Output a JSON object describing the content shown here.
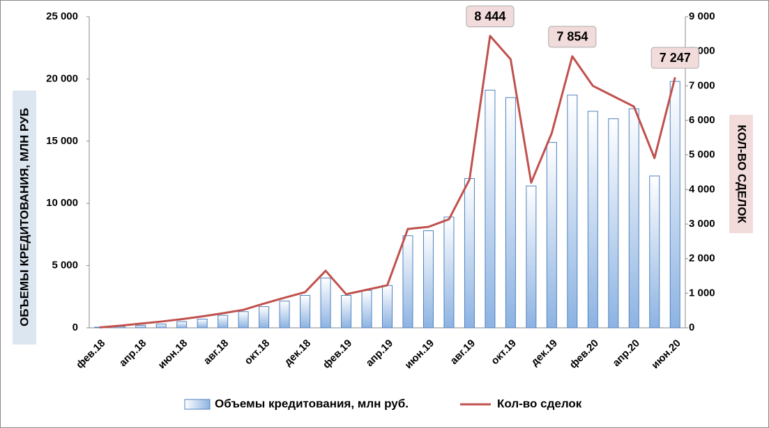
{
  "chart_data": {
    "type": "bar-line",
    "y_label": "ОБЪЕМЫ КРЕДИТОВАНИЯ, МЛН РУБ",
    "y2_label": "КОЛ-ВО СДЕЛОК",
    "categories": [
      "фев.18",
      null,
      "апр.18",
      null,
      "июн.18",
      null,
      "авг.18",
      null,
      "окт.18",
      null,
      "дек.18",
      null,
      "фев.19",
      null,
      "апр.19",
      null,
      "июн.19",
      null,
      "авг.19",
      null,
      "окт.19",
      null,
      "дек.19",
      null,
      "фев.20",
      null,
      "апр.20",
      null,
      "июн.20"
    ],
    "series": [
      {
        "name": "Объемы кредитования, млн руб.",
        "type": "bar",
        "color": "#4f81bd",
        "values": [
          50,
          100,
          200,
          300,
          500,
          700,
          1000,
          1300,
          1700,
          2150,
          2600,
          4000,
          2600,
          3000,
          3400,
          7400,
          7800,
          8900,
          12000,
          19100,
          18500,
          11400,
          14900,
          18700,
          17400,
          16800,
          17600,
          12200,
          19800
        ]
      },
      {
        "name": "Кол-во сделок",
        "type": "line",
        "axis": "y2",
        "color": "#c0504d",
        "values": [
          10,
          60,
          120,
          180,
          250,
          330,
          420,
          520,
          700,
          870,
          1030,
          1650,
          970,
          1100,
          1230,
          2860,
          2920,
          3140,
          4290,
          8444,
          7770,
          4200,
          5630,
          7854,
          7000,
          6700,
          6400,
          4910,
          7247
        ],
        "value_labels": [
          null,
          null,
          null,
          null,
          null,
          null,
          null,
          null,
          null,
          null,
          null,
          null,
          null,
          null,
          null,
          null,
          null,
          null,
          null,
          "8 444",
          null,
          null,
          null,
          "7 854",
          null,
          null,
          null,
          null,
          "7 247"
        ]
      }
    ],
    "ylim": [
      0,
      25000
    ],
    "yticks": [
      0,
      {
        "value": 5000,
        "label": "5 000"
      },
      {
        "value": 10000,
        "label": "10 000"
      },
      {
        "value": 15000,
        "label": "15 000"
      },
      {
        "value": 20000,
        "label": "20 000"
      },
      {
        "value": 25000,
        "label": "25 000"
      }
    ],
    "y2lim": [
      0,
      9000
    ],
    "y2ticks": [
      0,
      {
        "value": 1000,
        "label": "1 000"
      },
      {
        "value": 2000,
        "label": "2 000"
      },
      {
        "value": 3000,
        "label": "3 000"
      },
      {
        "value": 4000,
        "label": "4 000"
      },
      {
        "value": 5000,
        "label": "5 000"
      },
      {
        "value": 6000,
        "label": "6 000"
      },
      {
        "value": 7000,
        "label": "7 000"
      },
      {
        "value": 8000,
        "label": "8 000"
      },
      {
        "value": 9000,
        "label": "9 000"
      }
    ],
    "legend": "bottom"
  }
}
